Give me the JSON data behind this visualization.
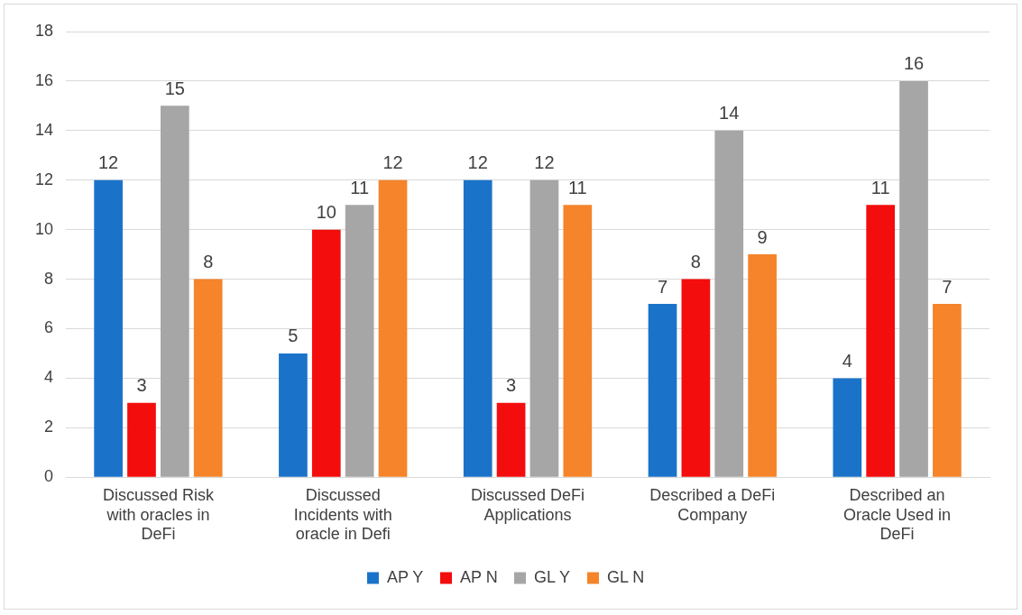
{
  "chart_data": {
    "type": "bar",
    "categories": [
      "Discussed Risk with oracles in DeFi",
      "Discussed Incidents with oracle in Defi",
      "Discussed DeFi Applications",
      "Described a DeFi Company",
      "Described an Oracle Used in DeFi"
    ],
    "series": [
      {
        "name": "AP Y",
        "color": "#1a73c9",
        "values": [
          12,
          5,
          12,
          7,
          4
        ]
      },
      {
        "name": "AP N",
        "color": "#f30d0d",
        "values": [
          3,
          10,
          3,
          8,
          11
        ]
      },
      {
        "name": "GL Y",
        "color": "#a6a6a6",
        "values": [
          15,
          11,
          12,
          14,
          16
        ]
      },
      {
        "name": "GL N",
        "color": "#f5842a",
        "values": [
          8,
          12,
          11,
          9,
          7
        ]
      }
    ],
    "ylim": [
      0,
      18
    ],
    "yticks": [
      0,
      2,
      4,
      6,
      8,
      10,
      12,
      14,
      16,
      18
    ],
    "grid": "y",
    "legend": "bottom",
    "data_labels": true
  }
}
